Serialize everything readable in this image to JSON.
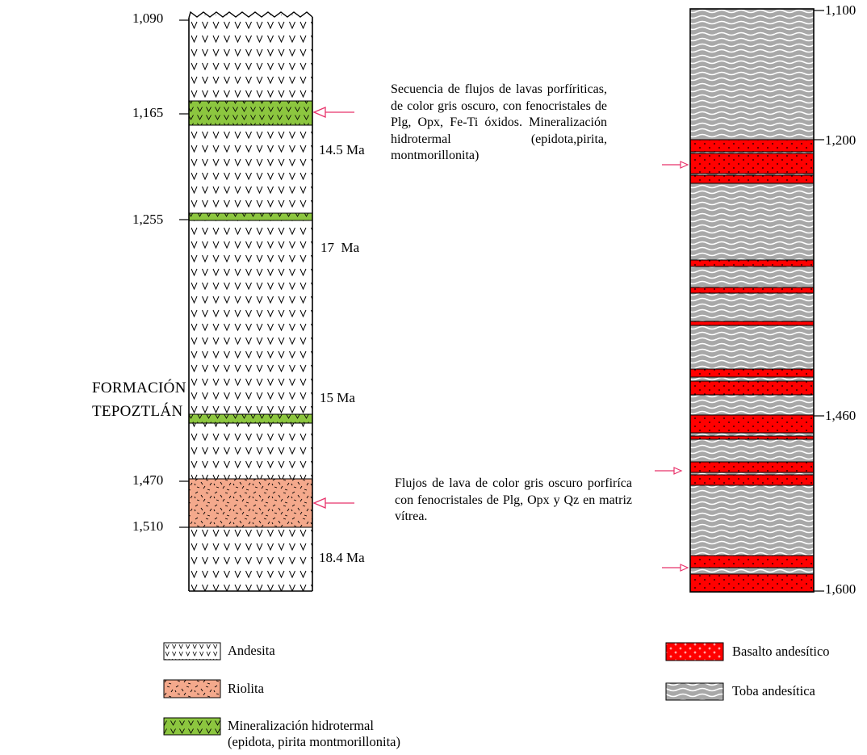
{
  "formation": [
    "FORMACIÓN",
    "TEPOZTLÁN"
  ],
  "left_column": {
    "depths": [
      "1,090",
      "1,165",
      "1,255",
      "1,470",
      "1,510"
    ],
    "ages": [
      "14.5 Ma",
      "17  Ma",
      "15 Ma",
      "18.4 Ma"
    ]
  },
  "right_column": {
    "depths": [
      "1,100",
      "1,200",
      "1,460",
      "1,600"
    ]
  },
  "descriptions": {
    "upper": "Secuencia de flujos de lavas porfíriticas, de color gris oscuro, con fenocristales de Plg, Opx, Fe-Ti óxidos. Mineralización hidrotermal (epidota,pirita, montmorillonita)",
    "lower": "Flujos de lava de color gris oscuro porfiríca con fenocristales de Plg, Opx y Qz en matriz vítrea."
  },
  "legend": {
    "andesita": "Andesita",
    "riolita": "Riolita",
    "mineralizacion_1": "Mineralización hidrotermal",
    "mineralizacion_2": "(epidota, pirita montmorillonita)",
    "basalto": "Basalto andesítico",
    "toba": "Toba andesítica"
  },
  "colors": {
    "riolita": "#f4a98c",
    "mineralizacion": "#8cc63f",
    "basalto": "#ff0000",
    "toba": "#a8a8a8",
    "arrow": "#e8336b"
  }
}
